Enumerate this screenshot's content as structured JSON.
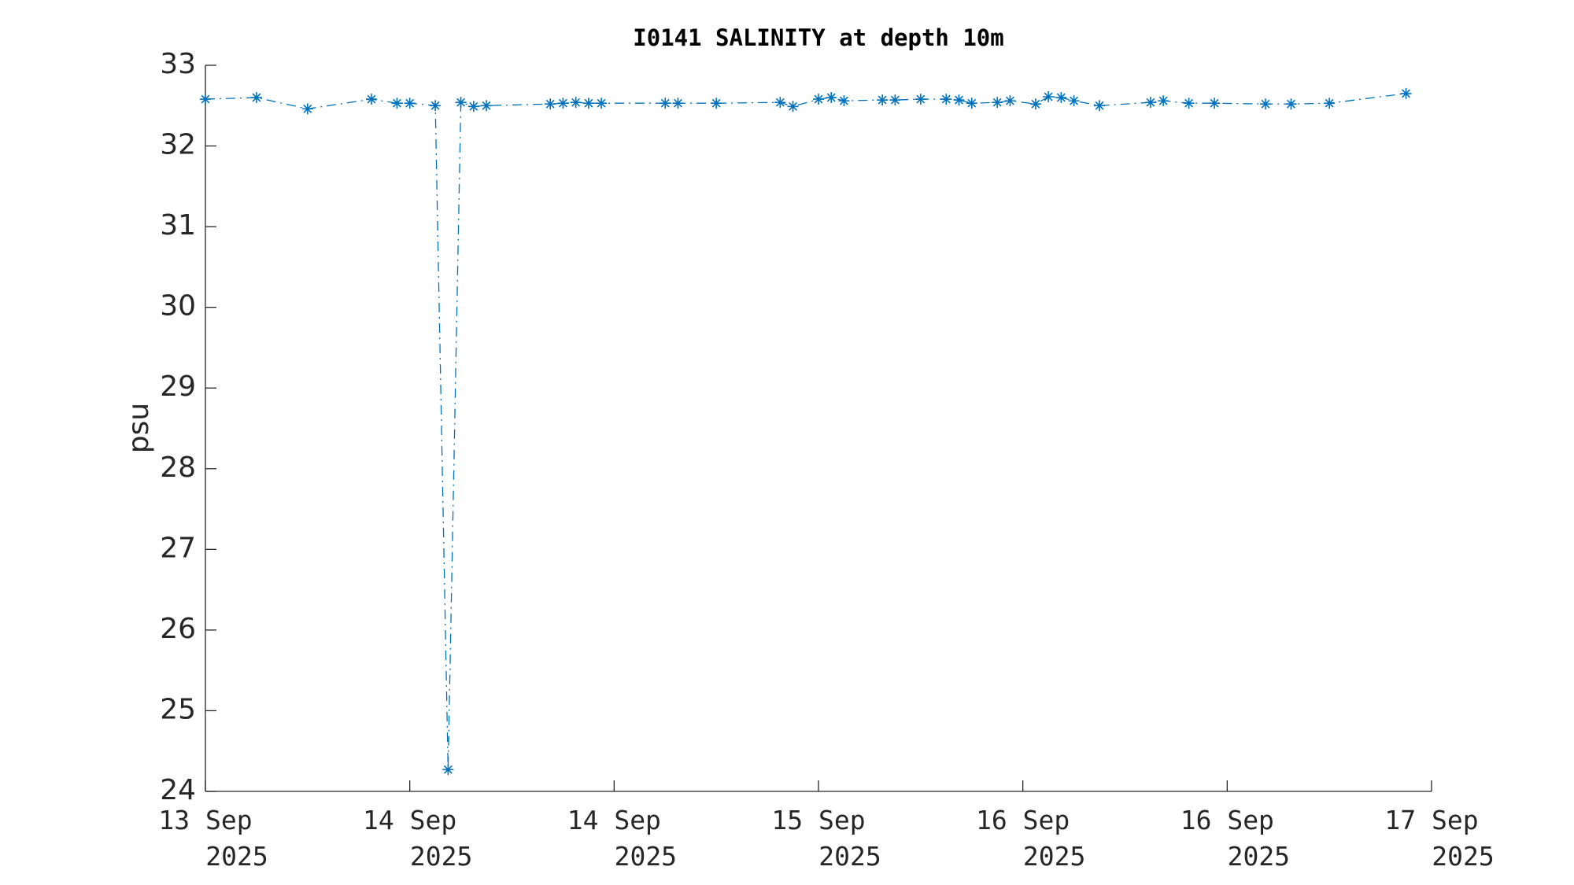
{
  "chart_data": {
    "type": "line",
    "title": "I0141 SALINITY at depth 10m",
    "y_label": "psu",
    "xlim": [
      0,
      96
    ],
    "xticks": [
      {
        "value": 0,
        "label": "13 Sep 2025"
      },
      {
        "value": 16,
        "label": "14 Sep 2025"
      },
      {
        "value": 32,
        "label": "14 Sep 2025"
      },
      {
        "value": 48,
        "label": "15 Sep 2025"
      },
      {
        "value": 64,
        "label": "16 Sep 2025"
      },
      {
        "value": 80,
        "label": "16 Sep 2025"
      },
      {
        "value": 96,
        "label": "17 Sep 2025"
      }
    ],
    "ylim": [
      24,
      33
    ],
    "yticks": [
      24,
      25,
      26,
      27,
      28,
      29,
      30,
      31,
      32,
      33
    ],
    "series": [
      {
        "color": "#0072bd",
        "line_style": "dashdot",
        "marker": "asterisk",
        "x": [
          0,
          4,
          8,
          13,
          15,
          16,
          18,
          19,
          20,
          21,
          22,
          27,
          28,
          29,
          30,
          31,
          36,
          37,
          40,
          45,
          46,
          48,
          49,
          50,
          53,
          54,
          56,
          58,
          59,
          60,
          62,
          63,
          65,
          66,
          67,
          68,
          70,
          74,
          75,
          77,
          79,
          83,
          85,
          88,
          94
        ],
        "values": [
          32.58,
          32.6,
          32.46,
          32.58,
          32.53,
          32.53,
          32.5,
          24.27,
          32.54,
          32.49,
          32.5,
          32.52,
          32.53,
          32.54,
          32.53,
          32.53,
          32.53,
          32.53,
          32.53,
          32.54,
          32.49,
          32.58,
          32.6,
          32.56,
          32.57,
          32.57,
          32.58,
          32.58,
          32.57,
          32.53,
          32.54,
          32.56,
          32.52,
          32.61,
          32.6,
          32.56,
          32.5,
          32.54,
          32.56,
          32.53,
          32.53,
          32.52,
          32.52,
          32.53,
          32.65
        ]
      }
    ]
  }
}
